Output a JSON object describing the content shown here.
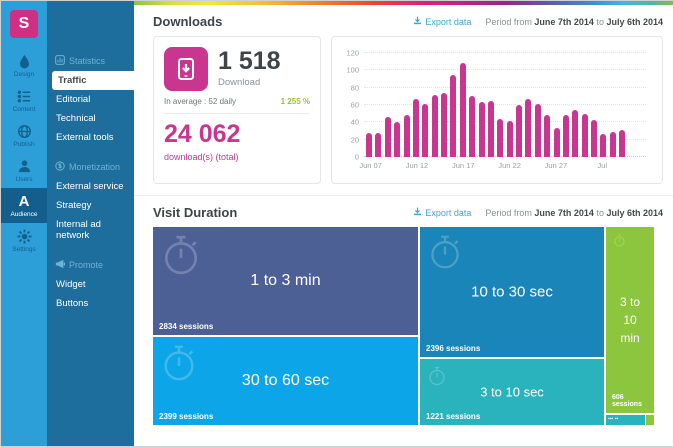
{
  "brand": {
    "logo": "S"
  },
  "rail": {
    "items": [
      {
        "label": "Design",
        "icon": "drop-icon"
      },
      {
        "label": "Content",
        "icon": "list-icon"
      },
      {
        "label": "Publish",
        "icon": "globe-icon"
      },
      {
        "label": "Users",
        "icon": "user-icon"
      },
      {
        "label": "Audience",
        "icon": "audience-a-icon"
      },
      {
        "label": "Settings",
        "icon": "gear-icon"
      }
    ],
    "active_item": "Audience"
  },
  "subnav": {
    "sections": [
      {
        "header": "Statistics",
        "icon": "bar-chart-icon",
        "items": [
          "Traffic",
          "Editorial",
          "Technical",
          "External tools"
        ]
      },
      {
        "header": "Monetization",
        "icon": "coin-icon",
        "items": [
          "External service",
          "Strategy",
          "Internal ad network"
        ]
      },
      {
        "header": "Promote",
        "icon": "megaphone-icon",
        "items": [
          "Widget",
          "Buttons"
        ]
      }
    ],
    "active_item": "Traffic"
  },
  "common": {
    "export_label": "Export data",
    "period_prefix": "Period from",
    "period_start": "June 7th 2014",
    "period_joiner": "to",
    "period_end": "July 6th 2014"
  },
  "downloads": {
    "title": "Downloads",
    "count": "1 518",
    "count_label": "Download",
    "average": "In average : 52 daily",
    "growth": "1 255 %",
    "total": "24 062",
    "total_label": "download(s) (total)",
    "accent_color": "#c9368f",
    "growth_color": "#97c23c"
  },
  "chart_data": {
    "type": "bar",
    "values": [
      28,
      28,
      46,
      40,
      48,
      67,
      61,
      71,
      74,
      95,
      108,
      70,
      63,
      65,
      44,
      41,
      60,
      67,
      61,
      48,
      34,
      48,
      54,
      50,
      43,
      26,
      29,
      31
    ],
    "ticks": [
      {
        "index": 0,
        "label": "Jun 07"
      },
      {
        "index": 5,
        "label": "Jun 12"
      },
      {
        "index": 10,
        "label": "Jun 17"
      },
      {
        "index": 15,
        "label": "Jun 22"
      },
      {
        "index": 20,
        "label": "Jun 27"
      },
      {
        "index": 25,
        "label": "Jul"
      }
    ],
    "ylim": [
      0,
      120
    ],
    "ystep": 20,
    "bar_color": "#c9368f",
    "grid": true,
    "legend": null,
    "xlabel": "",
    "ylabel": ""
  },
  "visit_duration": {
    "title": "Visit Duration",
    "tiles": [
      {
        "label": "1 to 3 min",
        "sessions": "2834 sessions",
        "color": "#4d6096"
      },
      {
        "label": "30 to 60 sec",
        "sessions": "2399 sessions",
        "color": "#0ca6e8"
      },
      {
        "label": "10 to 30 sec",
        "sessions": "2396 sessions",
        "color": "#1a85b8"
      },
      {
        "label": "3 to 10 sec",
        "sessions": "1221 sessions",
        "color": "#2ab3bd"
      },
      {
        "label": "3 to 10 min",
        "sessions": "606 sessions",
        "color": "#8cc63e"
      },
      {
        "label": "",
        "sessions": "",
        "color": "#2ab3bd"
      },
      {
        "label": "",
        "sessions": "",
        "color": "#8cc63e"
      }
    ]
  }
}
